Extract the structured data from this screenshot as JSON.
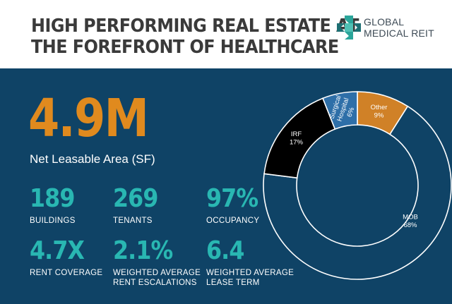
{
  "header": {
    "headline_line1": "HIGH PERFORMING REAL ESTATE AT",
    "headline_line2": "THE FOREFRONT OF HEALTHCARE",
    "logo_line1": "GLOBAL",
    "logo_line2": "MEDICAL REIT",
    "logo_icon": "medical-cross-logo-icon"
  },
  "colors": {
    "header_bg": "#ffffff",
    "panel_bg": "#0f4366",
    "accent_orange": "#e08a1e",
    "accent_teal": "#29b7b2",
    "text_white": "#ffffff"
  },
  "hero": {
    "value": "4.9M",
    "label": "Net Leasable Area (SF)"
  },
  "metrics": [
    {
      "value": "189",
      "label_line1": "BUILDINGS",
      "label_line2": ""
    },
    {
      "value": "269",
      "label_line1": "TENANTS",
      "label_line2": ""
    },
    {
      "value": "97%",
      "label_line1": "OCCUPANCY",
      "label_line2": ""
    },
    {
      "value": "4.7X",
      "label_line1": "RENT COVERAGE",
      "label_line2": ""
    },
    {
      "value": "2.1%",
      "label_line1": "WEIGHTED AVERAGE",
      "label_line2": "RENT ESCALATIONS"
    },
    {
      "value": "6.4",
      "label_line1": "WEIGHTED AVERAGE",
      "label_line2": "LEASE TERM"
    }
  ],
  "chart_data": {
    "type": "pie",
    "donut": true,
    "title": "",
    "slices": [
      {
        "label_line1": "Other",
        "label_line2": "",
        "pct_label": "9%",
        "value": 9,
        "color": "#d08127"
      },
      {
        "label_line1": "MOB",
        "label_line2": "",
        "pct_label": "68%",
        "value": 68,
        "color": "#0f4366"
      },
      {
        "label_line1": "IRF",
        "label_line2": "",
        "pct_label": "17%",
        "value": 17,
        "color": "#000000"
      },
      {
        "label_line1": "Surgical",
        "label_line2": "Hospital",
        "pct_label": "6%",
        "value": 6,
        "color": "#2e6fa8"
      }
    ],
    "start_angle_deg": 0,
    "direction": "clockwise",
    "slice_border_color": "#ffffff"
  }
}
